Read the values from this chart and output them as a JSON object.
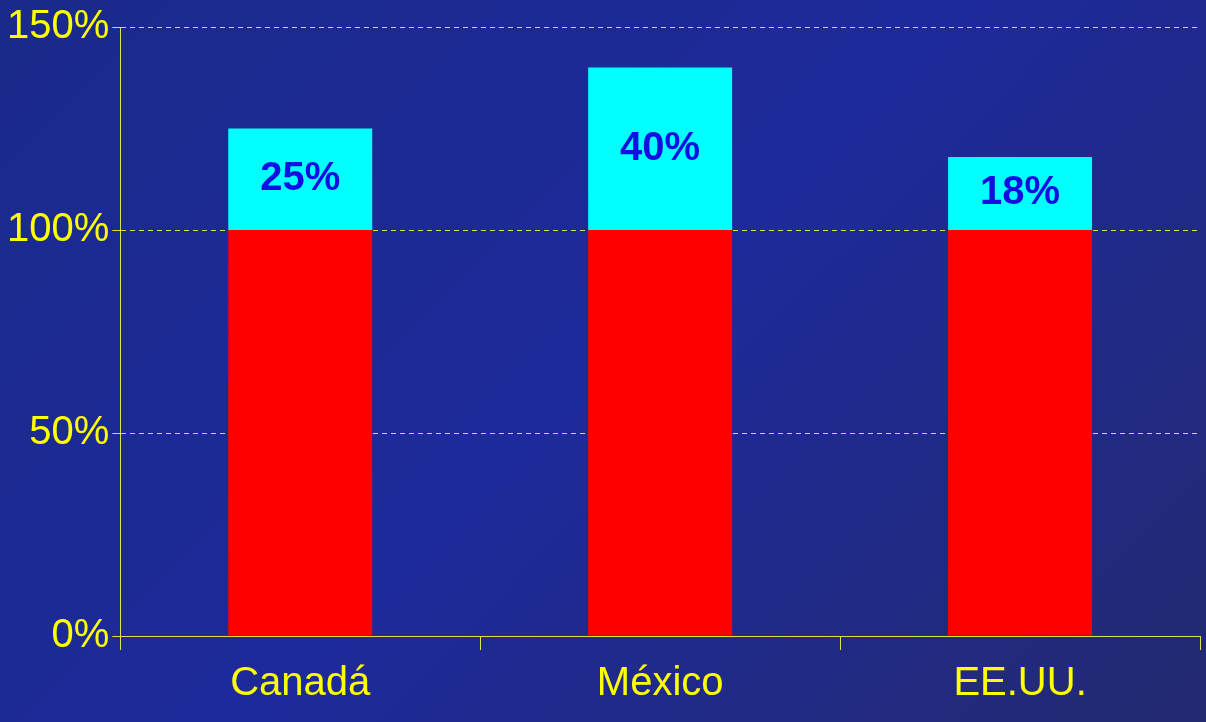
{
  "chart_data": {
    "type": "bar",
    "stacked": true,
    "categories": [
      "Canadá",
      "México",
      "EE.UU."
    ],
    "series": [
      {
        "color": "#ff0000",
        "values": [
          100,
          100,
          100
        ]
      },
      {
        "color": "#00ffff",
        "values": [
          25,
          40,
          18
        ],
        "value_labels": [
          "25%",
          "40%",
          "18%"
        ]
      }
    ],
    "ylim": [
      0,
      150
    ],
    "yticks": [
      {
        "value": 0,
        "label": "0%"
      },
      {
        "value": 50,
        "label": "50%"
      },
      {
        "value": 100,
        "label": "100%"
      },
      {
        "value": 150,
        "label": "150%"
      }
    ],
    "grid": "y",
    "legend": false
  }
}
